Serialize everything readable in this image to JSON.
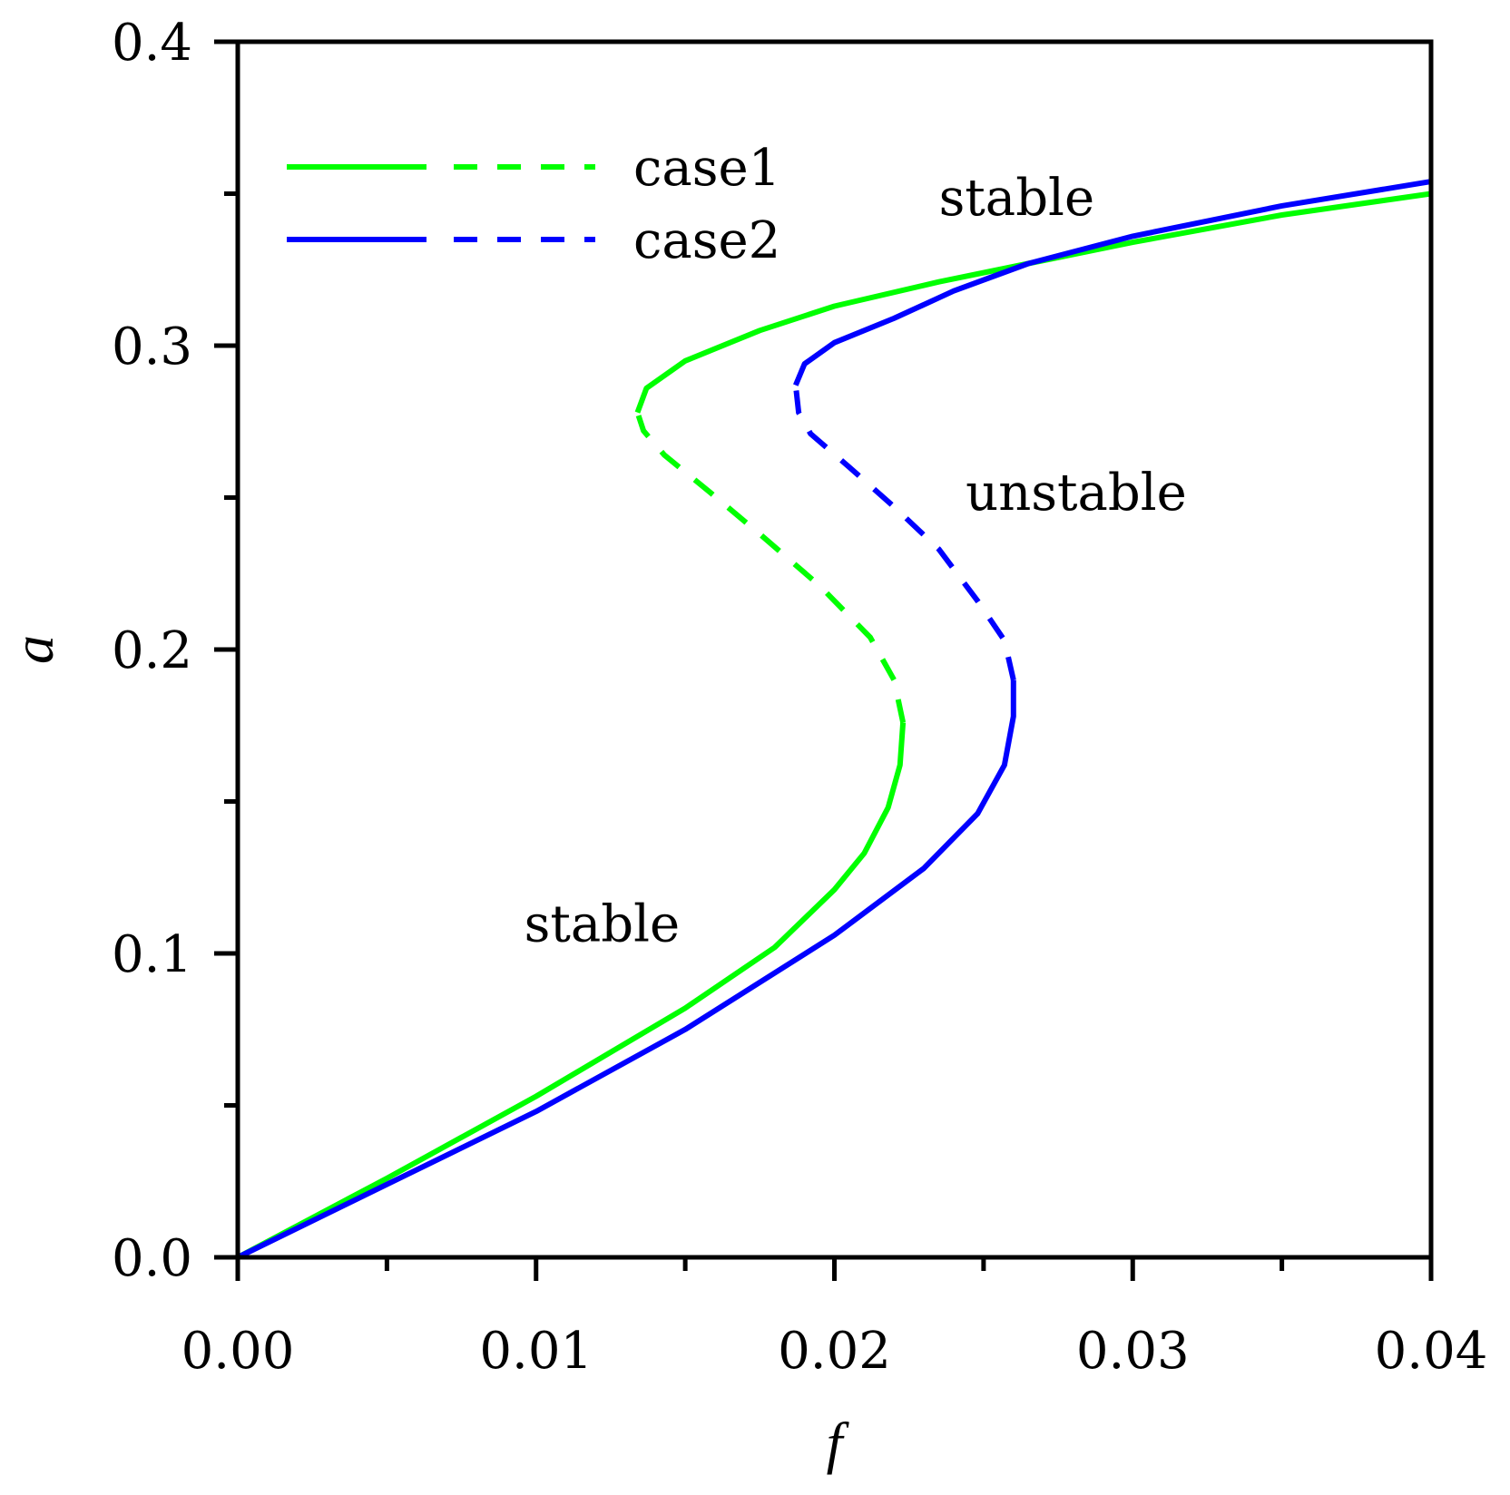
{
  "chart_data": {
    "type": "line",
    "xlabel": "f",
    "ylabel": "a",
    "xlim": [
      0,
      0.04
    ],
    "ylim": [
      0,
      0.4
    ],
    "x_ticks": [
      0,
      0.01,
      0.02,
      0.03,
      0.04
    ],
    "x_tick_labels": [
      "0.00",
      "0.01",
      "0.02",
      "0.03",
      "0.04"
    ],
    "x_minor_ticks": [
      0.005,
      0.015,
      0.025,
      0.035
    ],
    "y_ticks": [
      0,
      0.1,
      0.2,
      0.3,
      0.4
    ],
    "y_tick_labels": [
      "0.0",
      "0.1",
      "0.2",
      "0.3",
      "0.4"
    ],
    "y_minor_ticks": [
      0.05,
      0.15,
      0.25,
      0.35
    ],
    "grid": false,
    "legend_position": "top-left",
    "series": [
      {
        "name": "case1",
        "color": "#00ff00",
        "stable_lower": [
          [
            0,
            0
          ],
          [
            0.005,
            0.026
          ],
          [
            0.01,
            0.053
          ],
          [
            0.015,
            0.082
          ],
          [
            0.018,
            0.102
          ],
          [
            0.02,
            0.121
          ],
          [
            0.021,
            0.133
          ],
          [
            0.0218,
            0.148
          ],
          [
            0.0222,
            0.162
          ],
          [
            0.0223,
            0.176
          ]
        ],
        "unstable": [
          [
            0.0223,
            0.176
          ],
          [
            0.022,
            0.19
          ],
          [
            0.0212,
            0.204
          ],
          [
            0.0195,
            0.221
          ],
          [
            0.0175,
            0.238
          ],
          [
            0.0158,
            0.252
          ],
          [
            0.0143,
            0.264
          ],
          [
            0.0136,
            0.272
          ],
          [
            0.0134,
            0.278
          ]
        ],
        "stable_upper": [
          [
            0.0134,
            0.278
          ],
          [
            0.0137,
            0.286
          ],
          [
            0.015,
            0.295
          ],
          [
            0.0175,
            0.305
          ],
          [
            0.02,
            0.313
          ],
          [
            0.0235,
            0.321
          ],
          [
            0.0265,
            0.327
          ],
          [
            0.03,
            0.334
          ],
          [
            0.035,
            0.343
          ],
          [
            0.04,
            0.35
          ]
        ]
      },
      {
        "name": "case2",
        "color": "#0000ff",
        "stable_lower": [
          [
            0,
            0
          ],
          [
            0.005,
            0.024
          ],
          [
            0.01,
            0.048
          ],
          [
            0.015,
            0.075
          ],
          [
            0.02,
            0.106
          ],
          [
            0.023,
            0.128
          ],
          [
            0.0248,
            0.146
          ],
          [
            0.0257,
            0.162
          ],
          [
            0.026,
            0.178
          ],
          [
            0.026,
            0.19
          ]
        ],
        "unstable": [
          [
            0.026,
            0.19
          ],
          [
            0.0257,
            0.203
          ],
          [
            0.0248,
            0.216
          ],
          [
            0.0235,
            0.233
          ],
          [
            0.022,
            0.247
          ],
          [
            0.0205,
            0.26
          ],
          [
            0.0192,
            0.271
          ],
          [
            0.0188,
            0.278
          ],
          [
            0.0187,
            0.287
          ]
        ],
        "stable_upper": [
          [
            0.0187,
            0.287
          ],
          [
            0.019,
            0.294
          ],
          [
            0.02,
            0.301
          ],
          [
            0.022,
            0.309
          ],
          [
            0.024,
            0.318
          ],
          [
            0.0265,
            0.327
          ],
          [
            0.03,
            0.336
          ],
          [
            0.035,
            0.346
          ],
          [
            0.04,
            0.354
          ]
        ]
      }
    ],
    "annotations": [
      {
        "text": "stable",
        "x": 0.0235,
        "y": 0.343
      },
      {
        "text": "unstable",
        "x": 0.0244,
        "y": 0.246
      },
      {
        "text": "stable",
        "x": 0.0096,
        "y": 0.104
      }
    ]
  }
}
